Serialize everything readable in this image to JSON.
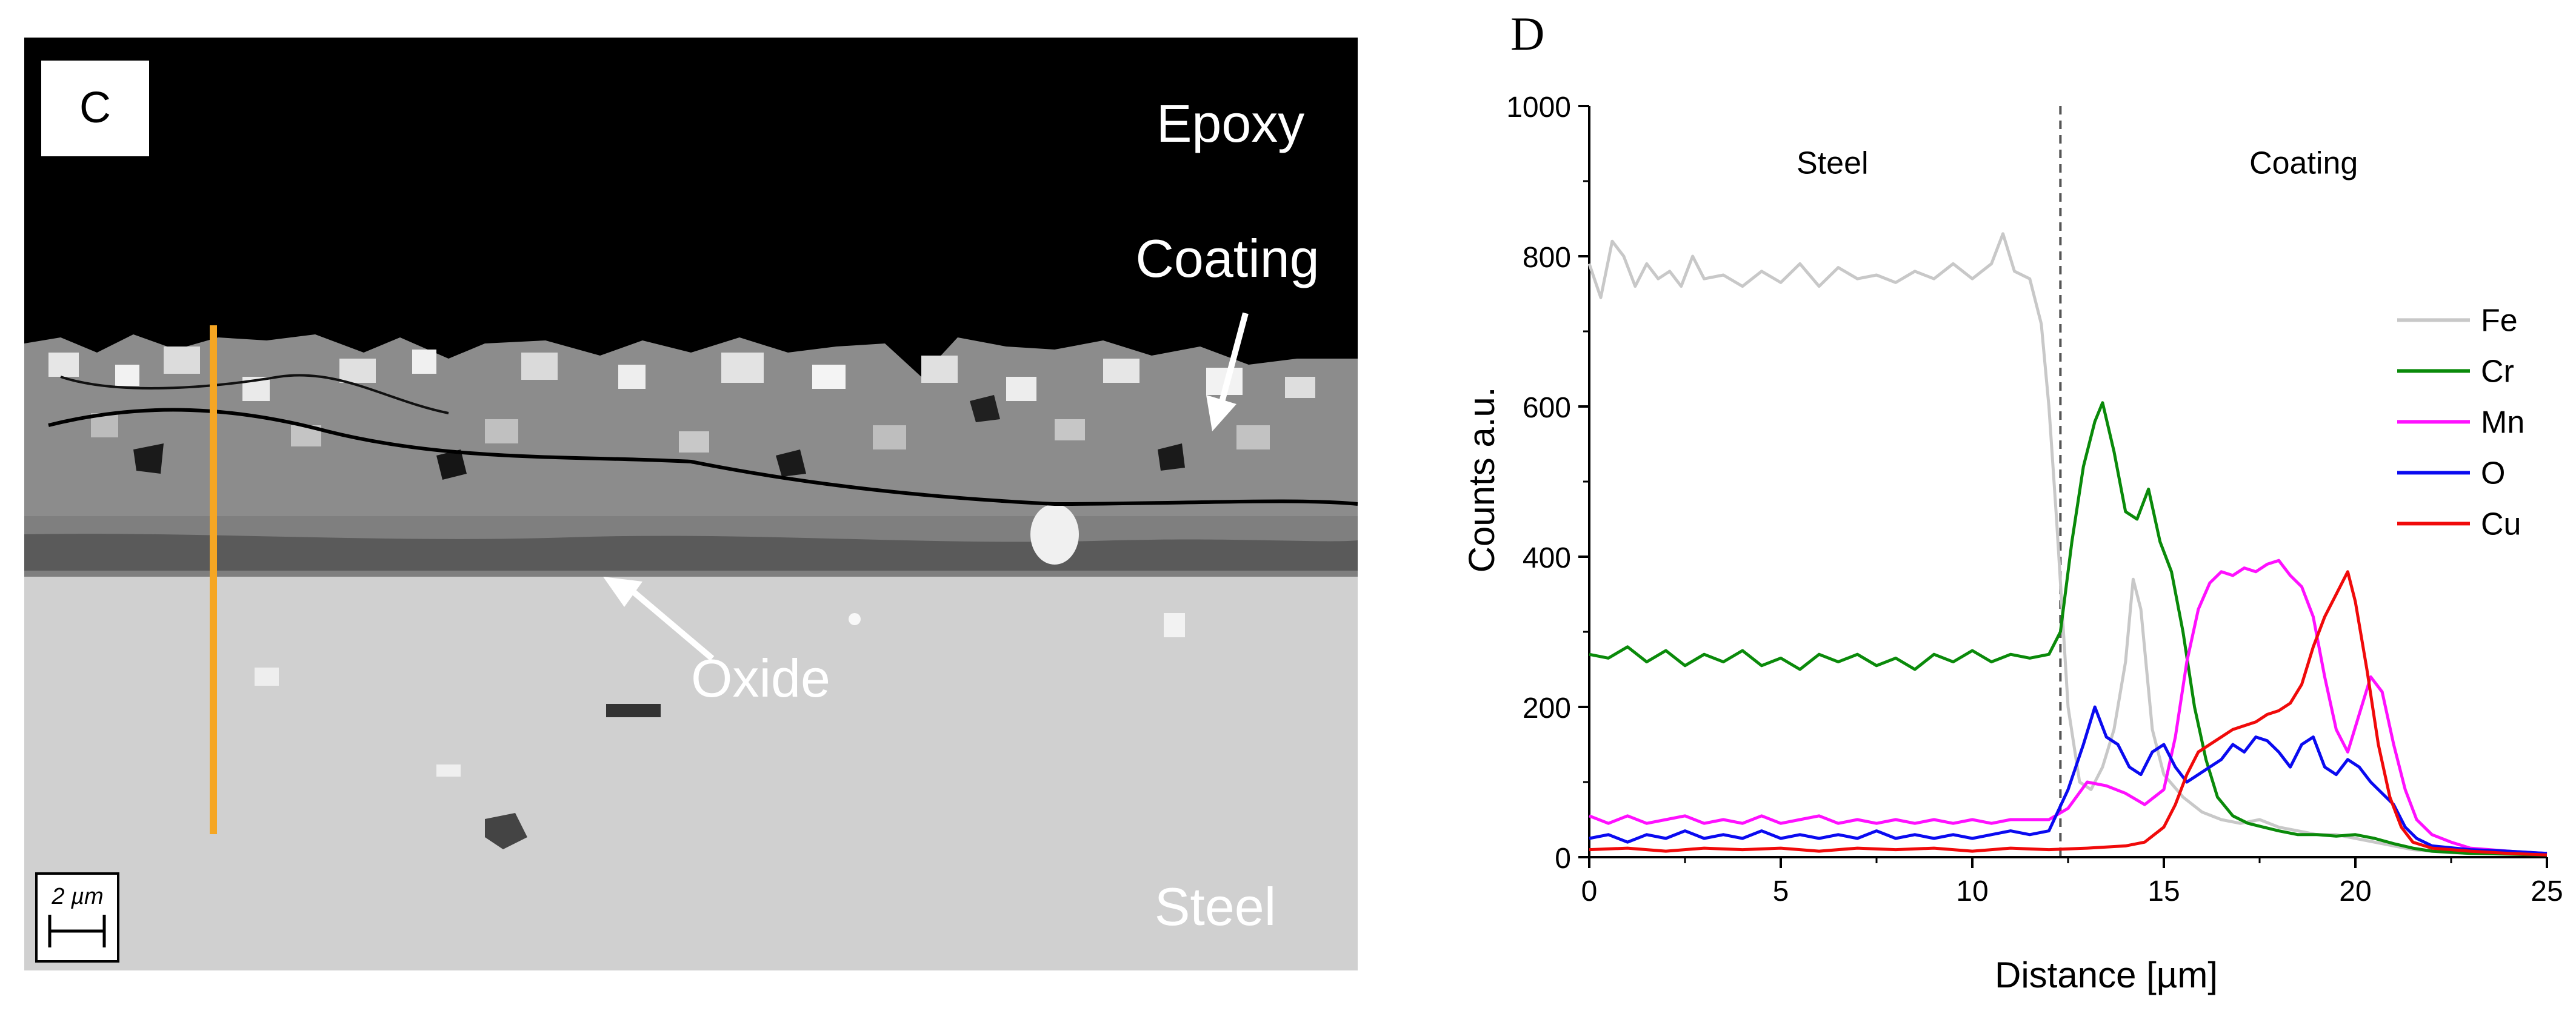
{
  "sem_panel": {
    "panel_label": "C",
    "labels": {
      "epoxy": "Epoxy",
      "coating": "Coating",
      "oxide": "Oxide",
      "steel": "Steel"
    },
    "scale_bar": "2 µm",
    "colors": {
      "line_scan": "#f5a623",
      "epoxy": "#000000",
      "steel": "#d0d0d0"
    }
  },
  "chart_data": {
    "type": "line",
    "panel_label": "D",
    "xlabel": "Distance [µm]",
    "ylabel": "Counts a.u.",
    "xlim": [
      0,
      25
    ],
    "ylim": [
      0,
      1000
    ],
    "xticks": [
      0,
      5,
      10,
      15,
      20,
      25
    ],
    "yticks": [
      0,
      200,
      400,
      600,
      800,
      1000
    ],
    "boundary_x": 12.3,
    "region_labels": [
      "Steel",
      "Coating"
    ],
    "legend_position": "right",
    "series": [
      {
        "name": "Fe",
        "color": "#c8c8c8",
        "points": [
          [
            0,
            790
          ],
          [
            0.3,
            745
          ],
          [
            0.6,
            820
          ],
          [
            0.9,
            800
          ],
          [
            1.2,
            760
          ],
          [
            1.5,
            790
          ],
          [
            1.8,
            770
          ],
          [
            2.1,
            780
          ],
          [
            2.4,
            760
          ],
          [
            2.7,
            800
          ],
          [
            3,
            770
          ],
          [
            3.5,
            775
          ],
          [
            4,
            760
          ],
          [
            4.5,
            780
          ],
          [
            5,
            765
          ],
          [
            5.5,
            790
          ],
          [
            6,
            760
          ],
          [
            6.5,
            785
          ],
          [
            7,
            770
          ],
          [
            7.5,
            775
          ],
          [
            8,
            765
          ],
          [
            8.5,
            780
          ],
          [
            9,
            770
          ],
          [
            9.5,
            790
          ],
          [
            10,
            770
          ],
          [
            10.5,
            790
          ],
          [
            10.8,
            830
          ],
          [
            11.1,
            780
          ],
          [
            11.5,
            770
          ],
          [
            11.8,
            710
          ],
          [
            12,
            600
          ],
          [
            12.2,
            450
          ],
          [
            12.5,
            200
          ],
          [
            12.8,
            100
          ],
          [
            13.1,
            90
          ],
          [
            13.4,
            120
          ],
          [
            13.7,
            170
          ],
          [
            14,
            260
          ],
          [
            14.2,
            370
          ],
          [
            14.4,
            330
          ],
          [
            14.7,
            170
          ],
          [
            15,
            110
          ],
          [
            15.5,
            80
          ],
          [
            16,
            60
          ],
          [
            16.5,
            50
          ],
          [
            17,
            45
          ],
          [
            17.5,
            50
          ],
          [
            18,
            40
          ],
          [
            18.5,
            35
          ],
          [
            19,
            30
          ],
          [
            19.5,
            30
          ],
          [
            20,
            25
          ],
          [
            20.5,
            20
          ],
          [
            21,
            15
          ],
          [
            21.5,
            10
          ],
          [
            22,
            8
          ],
          [
            22.5,
            6
          ],
          [
            23,
            5
          ],
          [
            24,
            5
          ],
          [
            25,
            5
          ]
        ]
      },
      {
        "name": "Cr",
        "color": "#0a8a0a",
        "points": [
          [
            0,
            270
          ],
          [
            0.5,
            265
          ],
          [
            1,
            280
          ],
          [
            1.5,
            260
          ],
          [
            2,
            275
          ],
          [
            2.5,
            255
          ],
          [
            3,
            270
          ],
          [
            3.5,
            260
          ],
          [
            4,
            275
          ],
          [
            4.5,
            255
          ],
          [
            5,
            265
          ],
          [
            5.5,
            250
          ],
          [
            6,
            270
          ],
          [
            6.5,
            260
          ],
          [
            7,
            270
          ],
          [
            7.5,
            255
          ],
          [
            8,
            265
          ],
          [
            8.5,
            250
          ],
          [
            9,
            270
          ],
          [
            9.5,
            260
          ],
          [
            10,
            275
          ],
          [
            10.5,
            260
          ],
          [
            11,
            270
          ],
          [
            11.5,
            265
          ],
          [
            12,
            270
          ],
          [
            12.3,
            300
          ],
          [
            12.6,
            420
          ],
          [
            12.9,
            520
          ],
          [
            13.2,
            580
          ],
          [
            13.4,
            605
          ],
          [
            13.7,
            540
          ],
          [
            14,
            460
          ],
          [
            14.3,
            450
          ],
          [
            14.6,
            490
          ],
          [
            14.9,
            420
          ],
          [
            15.2,
            380
          ],
          [
            15.5,
            300
          ],
          [
            15.8,
            200
          ],
          [
            16.1,
            130
          ],
          [
            16.4,
            80
          ],
          [
            16.8,
            55
          ],
          [
            17.2,
            45
          ],
          [
            17.6,
            40
          ],
          [
            18,
            35
          ],
          [
            18.5,
            30
          ],
          [
            19,
            30
          ],
          [
            19.5,
            28
          ],
          [
            20,
            30
          ],
          [
            20.5,
            25
          ],
          [
            21,
            18
          ],
          [
            21.5,
            12
          ],
          [
            22,
            8
          ],
          [
            23,
            5
          ],
          [
            24,
            4
          ],
          [
            25,
            3
          ]
        ]
      },
      {
        "name": "Mn",
        "color": "#ff10ff",
        "points": [
          [
            0,
            55
          ],
          [
            0.5,
            45
          ],
          [
            1,
            55
          ],
          [
            1.5,
            45
          ],
          [
            2,
            50
          ],
          [
            2.5,
            55
          ],
          [
            3,
            45
          ],
          [
            3.5,
            50
          ],
          [
            4,
            45
          ],
          [
            4.5,
            55
          ],
          [
            5,
            45
          ],
          [
            5.5,
            50
          ],
          [
            6,
            55
          ],
          [
            6.5,
            45
          ],
          [
            7,
            50
          ],
          [
            7.5,
            45
          ],
          [
            8,
            50
          ],
          [
            8.5,
            45
          ],
          [
            9,
            50
          ],
          [
            9.5,
            45
          ],
          [
            10,
            50
          ],
          [
            10.5,
            45
          ],
          [
            11,
            50
          ],
          [
            11.5,
            50
          ],
          [
            12,
            50
          ],
          [
            12.5,
            65
          ],
          [
            13,
            100
          ],
          [
            13.5,
            95
          ],
          [
            14,
            85
          ],
          [
            14.5,
            70
          ],
          [
            15,
            90
          ],
          [
            15.3,
            160
          ],
          [
            15.6,
            260
          ],
          [
            15.9,
            330
          ],
          [
            16.2,
            365
          ],
          [
            16.5,
            380
          ],
          [
            16.8,
            375
          ],
          [
            17.1,
            385
          ],
          [
            17.4,
            380
          ],
          [
            17.7,
            390
          ],
          [
            18,
            395
          ],
          [
            18.3,
            375
          ],
          [
            18.6,
            360
          ],
          [
            18.9,
            320
          ],
          [
            19.2,
            240
          ],
          [
            19.5,
            170
          ],
          [
            19.8,
            140
          ],
          [
            20.1,
            190
          ],
          [
            20.4,
            240
          ],
          [
            20.7,
            220
          ],
          [
            21,
            150
          ],
          [
            21.3,
            90
          ],
          [
            21.6,
            50
          ],
          [
            22,
            30
          ],
          [
            22.5,
            20
          ],
          [
            23,
            12
          ],
          [
            24,
            8
          ],
          [
            25,
            5
          ]
        ]
      },
      {
        "name": "O",
        "color": "#0a0af0",
        "points": [
          [
            0,
            25
          ],
          [
            0.5,
            30
          ],
          [
            1,
            20
          ],
          [
            1.5,
            30
          ],
          [
            2,
            25
          ],
          [
            2.5,
            35
          ],
          [
            3,
            25
          ],
          [
            3.5,
            30
          ],
          [
            4,
            25
          ],
          [
            4.5,
            35
          ],
          [
            5,
            25
          ],
          [
            5.5,
            30
          ],
          [
            6,
            25
          ],
          [
            6.5,
            30
          ],
          [
            7,
            25
          ],
          [
            7.5,
            35
          ],
          [
            8,
            25
          ],
          [
            8.5,
            30
          ],
          [
            9,
            25
          ],
          [
            9.5,
            30
          ],
          [
            10,
            25
          ],
          [
            10.5,
            30
          ],
          [
            11,
            35
          ],
          [
            11.5,
            30
          ],
          [
            12,
            35
          ],
          [
            12.5,
            90
          ],
          [
            12.9,
            150
          ],
          [
            13.2,
            200
          ],
          [
            13.5,
            160
          ],
          [
            13.8,
            150
          ],
          [
            14.1,
            120
          ],
          [
            14.4,
            110
          ],
          [
            14.7,
            140
          ],
          [
            15,
            150
          ],
          [
            15.3,
            120
          ],
          [
            15.6,
            100
          ],
          [
            15.9,
            110
          ],
          [
            16.2,
            120
          ],
          [
            16.5,
            130
          ],
          [
            16.8,
            150
          ],
          [
            17.1,
            140
          ],
          [
            17.4,
            160
          ],
          [
            17.7,
            155
          ],
          [
            18,
            140
          ],
          [
            18.3,
            120
          ],
          [
            18.6,
            150
          ],
          [
            18.9,
            160
          ],
          [
            19.2,
            120
          ],
          [
            19.5,
            110
          ],
          [
            19.8,
            130
          ],
          [
            20.1,
            120
          ],
          [
            20.4,
            100
          ],
          [
            20.7,
            85
          ],
          [
            21,
            70
          ],
          [
            21.3,
            40
          ],
          [
            21.6,
            25
          ],
          [
            22,
            15
          ],
          [
            23,
            10
          ],
          [
            24,
            8
          ],
          [
            25,
            5
          ]
        ]
      },
      {
        "name": "Cu",
        "color": "#f00a0a",
        "points": [
          [
            0,
            10
          ],
          [
            1,
            12
          ],
          [
            2,
            8
          ],
          [
            3,
            12
          ],
          [
            4,
            10
          ],
          [
            5,
            12
          ],
          [
            6,
            8
          ],
          [
            7,
            12
          ],
          [
            8,
            10
          ],
          [
            9,
            12
          ],
          [
            10,
            8
          ],
          [
            11,
            12
          ],
          [
            12,
            10
          ],
          [
            13,
            12
          ],
          [
            14,
            15
          ],
          [
            14.5,
            20
          ],
          [
            15,
            40
          ],
          [
            15.3,
            70
          ],
          [
            15.6,
            110
          ],
          [
            15.9,
            140
          ],
          [
            16.2,
            150
          ],
          [
            16.5,
            160
          ],
          [
            16.8,
            170
          ],
          [
            17.1,
            175
          ],
          [
            17.4,
            180
          ],
          [
            17.7,
            190
          ],
          [
            18,
            195
          ],
          [
            18.3,
            205
          ],
          [
            18.6,
            230
          ],
          [
            18.9,
            280
          ],
          [
            19.2,
            320
          ],
          [
            19.5,
            350
          ],
          [
            19.8,
            380
          ],
          [
            20,
            340
          ],
          [
            20.3,
            250
          ],
          [
            20.6,
            150
          ],
          [
            20.9,
            80
          ],
          [
            21.2,
            40
          ],
          [
            21.5,
            20
          ],
          [
            22,
            12
          ],
          [
            23,
            8
          ],
          [
            24,
            5
          ],
          [
            25,
            3
          ]
        ]
      }
    ]
  }
}
